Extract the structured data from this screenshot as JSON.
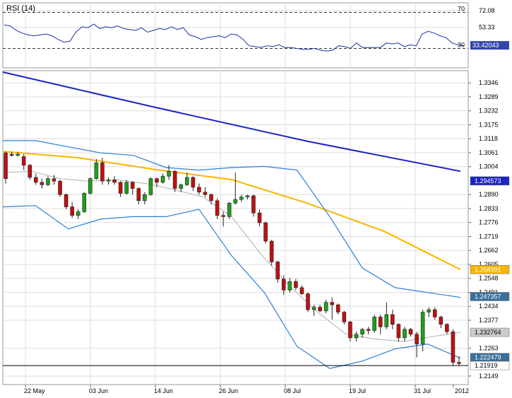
{
  "chart_data": [
    {
      "type": "line",
      "title": "RSI (14)",
      "levels": [
        70,
        30
      ],
      "ylim": [
        10,
        79
      ],
      "ticks": [
        "72.08",
        "53.33"
      ],
      "level_labels": [
        "70",
        "30"
      ],
      "current": "33.42043",
      "series": [
        {
          "values": [
            56,
            55,
            50,
            47,
            45,
            44,
            45,
            46,
            44,
            40,
            37,
            38,
            48,
            54,
            53,
            57,
            52,
            54,
            53,
            55,
            52,
            51,
            50,
            53,
            48,
            50,
            52,
            51,
            54,
            51,
            53,
            45,
            43,
            40,
            42,
            43,
            44,
            42,
            46,
            45,
            40,
            33,
            32,
            31,
            33,
            32,
            34,
            31,
            31,
            30,
            29,
            29,
            30,
            28,
            27,
            28,
            33,
            32,
            30,
            36,
            31,
            31,
            31,
            31,
            36,
            35,
            36,
            32,
            34,
            33,
            46,
            49,
            47,
            44,
            42,
            36,
            34,
            33
          ]
        }
      ],
      "colors": {
        "line": "#1a2ea0",
        "grid": "#dddddd",
        "current_bg": "#3344aa"
      }
    },
    {
      "type": "candlestick",
      "x_tick_labels": [
        "22 May",
        "03 Jun",
        "14 Jun",
        "26 Jun",
        "08 Jul",
        "19 Jul",
        "31 Jul",
        "2012"
      ],
      "y_ticks": [
        "1.3346",
        "1.3289",
        "1.3232",
        "1.3175",
        "1.3118",
        "1.3061",
        "1.3004",
        "1.2890",
        "1.2833",
        "1.2776",
        "1.2719",
        "1.2662",
        "1.2605",
        "1.2548",
        "1.2491",
        "1.2434",
        "1.2377",
        "1.2263",
        "1.2149"
      ],
      "ylim": [
        1.212,
        1.339
      ],
      "candles": [
        [
          1.306,
          1.3065,
          1.2935,
          1.2955
        ],
        [
          1.3055,
          1.3065,
          1.3045,
          1.305
        ],
        [
          1.305,
          1.3065,
          1.3045,
          1.3055
        ],
        [
          1.3045,
          1.3055,
          1.299,
          1.301
        ],
        [
          1.301,
          1.3015,
          1.295,
          1.296
        ],
        [
          1.296,
          1.2975,
          1.293,
          1.294
        ],
        [
          1.294,
          1.2955,
          1.2915,
          1.293
        ],
        [
          1.293,
          1.2965,
          1.2925,
          1.2955
        ],
        [
          1.2955,
          1.297,
          1.293,
          1.2945
        ],
        [
          1.2945,
          1.295,
          1.288,
          1.289
        ],
        [
          1.289,
          1.2895,
          1.283,
          1.284
        ],
        [
          1.284,
          1.286,
          1.2795,
          1.2805
        ],
        [
          1.2805,
          1.283,
          1.279,
          1.282
        ],
        [
          1.282,
          1.29,
          1.2815,
          1.2895
        ],
        [
          1.2895,
          1.296,
          1.289,
          1.2955
        ],
        [
          1.2955,
          1.3035,
          1.295,
          1.302
        ],
        [
          1.302,
          1.304,
          1.293,
          1.2945
        ],
        [
          1.2945,
          1.296,
          1.293,
          1.295
        ],
        [
          1.295,
          1.2965,
          1.293,
          1.294
        ],
        [
          1.294,
          1.2945,
          1.288,
          1.2895
        ],
        [
          1.2895,
          1.295,
          1.289,
          1.294
        ],
        [
          1.294,
          1.2945,
          1.289,
          1.2915
        ],
        [
          1.2915,
          1.292,
          1.285,
          1.2865
        ],
        [
          1.2865,
          1.29,
          1.285,
          1.289
        ],
        [
          1.289,
          1.296,
          1.2885,
          1.2955
        ],
        [
          1.2955,
          1.296,
          1.292,
          1.294
        ],
        [
          1.294,
          1.2975,
          1.2935,
          1.2965
        ],
        [
          1.2965,
          1.301,
          1.295,
          1.2985
        ],
        [
          1.2985,
          1.299,
          1.29,
          1.2915
        ],
        [
          1.2915,
          1.2935,
          1.29,
          1.293
        ],
        [
          1.293,
          1.298,
          1.2925,
          1.296
        ],
        [
          1.296,
          1.2965,
          1.2905,
          1.292
        ],
        [
          1.292,
          1.2935,
          1.289,
          1.29
        ],
        [
          1.29,
          1.292,
          1.288,
          1.289
        ],
        [
          1.289,
          1.2895,
          1.285,
          1.2865
        ],
        [
          1.2865,
          1.2875,
          1.279,
          1.2805
        ],
        [
          1.2805,
          1.282,
          1.276,
          1.28
        ],
        [
          1.28,
          1.286,
          1.279,
          1.2855
        ],
        [
          1.2855,
          1.298,
          1.285,
          1.287
        ],
        [
          1.287,
          1.289,
          1.286,
          1.288
        ],
        [
          1.288,
          1.289,
          1.287,
          1.2885
        ],
        [
          1.2885,
          1.289,
          1.28,
          1.2815
        ],
        [
          1.2815,
          1.283,
          1.276,
          1.2775
        ],
        [
          1.2775,
          1.278,
          1.269,
          1.27
        ],
        [
          1.27,
          1.2705,
          1.26,
          1.2615
        ],
        [
          1.2615,
          1.262,
          1.253,
          1.2545
        ],
        [
          1.2545,
          1.256,
          1.248,
          1.25
        ],
        [
          1.25,
          1.255,
          1.249,
          1.2535
        ],
        [
          1.2535,
          1.2545,
          1.25,
          1.251
        ],
        [
          1.251,
          1.252,
          1.248,
          1.2485
        ],
        [
          1.2485,
          1.249,
          1.241,
          1.242
        ],
        [
          1.242,
          1.244,
          1.2395,
          1.243
        ],
        [
          1.243,
          1.244,
          1.241,
          1.2415
        ],
        [
          1.2415,
          1.246,
          1.2405,
          1.245
        ],
        [
          1.245,
          1.247,
          1.238,
          1.244
        ],
        [
          1.244,
          1.2445,
          1.24,
          1.241
        ],
        [
          1.241,
          1.2415,
          1.236,
          1.237
        ],
        [
          1.237,
          1.2375,
          1.229,
          1.2305
        ],
        [
          1.2305,
          1.233,
          1.229,
          1.232
        ],
        [
          1.232,
          1.2345,
          1.2305,
          1.234
        ],
        [
          1.234,
          1.235,
          1.232,
          1.2335
        ],
        [
          1.2335,
          1.24,
          1.2325,
          1.239
        ],
        [
          1.239,
          1.24,
          1.232,
          1.235
        ],
        [
          1.235,
          1.245,
          1.234,
          1.24
        ],
        [
          1.24,
          1.242,
          1.234,
          1.236
        ],
        [
          1.236,
          1.2365,
          1.229,
          1.2305
        ],
        [
          1.2305,
          1.235,
          1.229,
          1.234
        ],
        [
          1.234,
          1.2345,
          1.231,
          1.232
        ],
        [
          1.232,
          1.233,
          1.2225,
          1.228
        ],
        [
          1.228,
          1.242,
          1.225,
          1.241
        ],
        [
          1.241,
          1.243,
          1.239,
          1.242
        ],
        [
          1.242,
          1.243,
          1.238,
          1.239
        ],
        [
          1.239,
          1.2395,
          1.2345,
          1.236
        ],
        [
          1.236,
          1.2365,
          1.232,
          1.233
        ],
        [
          1.233,
          1.234,
          1.219,
          1.2205
        ],
        [
          1.2205,
          1.223,
          1.219,
          1.22
        ]
      ],
      "moving_averages": [
        {
          "name": "ma_long",
          "color": "#1b24c4",
          "values": [
            1.339,
            1.3246,
            1.3107,
            1.2985
          ]
        },
        {
          "name": "ma_mid",
          "color": "#f7b500",
          "values": [
            1.3066,
            1.304,
            1.2992,
            1.2951,
            1.2854,
            1.274,
            1.2584
          ]
        },
        {
          "name": "ma_short",
          "color": "#bbbbbb",
          "values": [
            1.298,
            1.2985,
            1.2955,
            1.2945,
            1.295,
            1.2935,
            1.291,
            1.288,
            1.28,
            1.265,
            1.252,
            1.241,
            1.232,
            1.23,
            1.229,
            1.231,
            1.2328
          ]
        },
        {
          "name": "bb_upper",
          "color": "#2a7fd4",
          "values": [
            1.311,
            1.311,
            1.3085,
            1.306,
            1.305,
            1.3,
            1.299,
            1.3,
            1.3005,
            1.299,
            1.28,
            1.259,
            1.251,
            1.249,
            1.247
          ]
        },
        {
          "name": "bb_lower",
          "color": "#2a7fd4",
          "values": [
            1.284,
            1.2845,
            1.275,
            1.279,
            1.28,
            1.28,
            1.283,
            1.264,
            1.249,
            1.227,
            1.218,
            1.221,
            1.226,
            1.228,
            1.2222
          ]
        }
      ],
      "price_labels": [
        {
          "text": "1.294573",
          "bg": "#1b24c4",
          "fg": "#ffffff",
          "value": 1.294573
        },
        {
          "text": "1.258391",
          "bg": "#f7b500",
          "fg": "#ffffff",
          "value": 1.258391
        },
        {
          "text": "1.247357",
          "bg": "#3a6f98",
          "fg": "#ffffff",
          "value": 1.247357
        },
        {
          "text": "1.232764",
          "bg": "#cccccc",
          "fg": "#000000",
          "value": 1.232764
        },
        {
          "text": "1.222479",
          "bg": "#3a6f98",
          "fg": "#ffffff",
          "value": 1.222479
        },
        {
          "text": "1.21919",
          "bg": "#ffffff",
          "fg": "#000000",
          "value": 1.21919
        }
      ],
      "colors": {
        "up": "#1ea01e",
        "down": "#c01010",
        "grid": "#dddddd"
      }
    }
  ]
}
